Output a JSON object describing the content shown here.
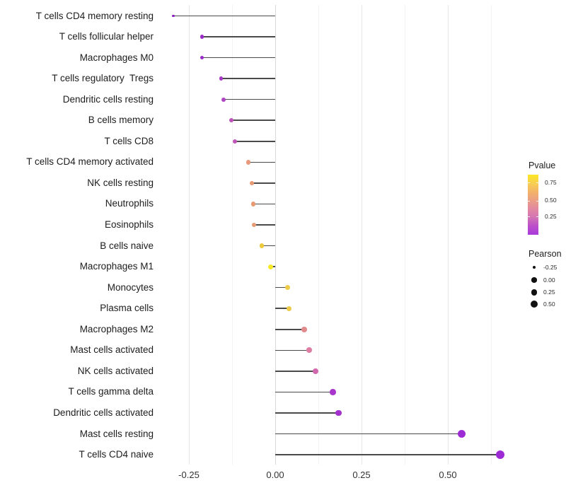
{
  "chart_data": {
    "type": "scatter",
    "subtype": "lollipop",
    "title": "",
    "xlabel": "",
    "ylabel": "",
    "xlim": [
      -0.336,
      0.67
    ],
    "grid": true,
    "x_ticks": [
      {
        "value": -0.25,
        "label": "-0.25"
      },
      {
        "value": 0.0,
        "label": "0.00"
      },
      {
        "value": 0.25,
        "label": "0.25"
      },
      {
        "value": 0.5,
        "label": "0.50"
      }
    ],
    "x_minor_ticks": [
      -0.125,
      0.125,
      0.375,
      0.625
    ],
    "points": [
      {
        "label": "T cells CD4 memory resting",
        "pearson": -0.295,
        "size": 3.4,
        "color": "#8B1FC4"
      },
      {
        "label": "T cells follicular helper",
        "pearson": -0.212,
        "size": 5.2,
        "color": "#9A2BC9"
      },
      {
        "label": "Macrophages M0",
        "pearson": -0.212,
        "size": 5.2,
        "color": "#9A2BC9"
      },
      {
        "label": "T cells regulatory  Tregs",
        "pearson": -0.157,
        "size": 5.6,
        "color": "#A73AC7"
      },
      {
        "label": "Dendritic cells resting",
        "pearson": -0.15,
        "size": 5.8,
        "color": "#B045C4"
      },
      {
        "label": "B cells memory",
        "pearson": -0.128,
        "size": 6.0,
        "color": "#BD52BB"
      },
      {
        "label": "T cells CD8",
        "pearson": -0.117,
        "size": 6.2,
        "color": "#BF55B9"
      },
      {
        "label": "T cells CD4 memory activated",
        "pearson": -0.078,
        "size": 6.4,
        "color": "#E8997B"
      },
      {
        "label": "NK cells resting",
        "pearson": -0.068,
        "size": 6.5,
        "color": "#E89A76"
      },
      {
        "label": "Neutrophils",
        "pearson": -0.064,
        "size": 6.5,
        "color": "#E79972"
      },
      {
        "label": "Eosinophils",
        "pearson": -0.061,
        "size": 6.5,
        "color": "#E69B74"
      },
      {
        "label": "B cells naive",
        "pearson": -0.039,
        "size": 6.8,
        "color": "#EEC93C"
      },
      {
        "label": "Macrophages M1",
        "pearson": -0.014,
        "size": 7.0,
        "color": "#F7E926"
      },
      {
        "label": "Monocytes",
        "pearson": 0.036,
        "size": 7.3,
        "color": "#EECC45"
      },
      {
        "label": "Plasma cells",
        "pearson": 0.04,
        "size": 7.3,
        "color": "#EECA4A"
      },
      {
        "label": "Macrophages M2",
        "pearson": 0.084,
        "size": 7.7,
        "color": "#E18A8D"
      },
      {
        "label": "Mast cells activated",
        "pearson": 0.098,
        "size": 7.8,
        "color": "#DE7CA3"
      },
      {
        "label": "NK cells activated",
        "pearson": 0.116,
        "size": 8.0,
        "color": "#D168AE"
      },
      {
        "label": "T cells gamma delta",
        "pearson": 0.167,
        "size": 8.5,
        "color": "#A936CC"
      },
      {
        "label": "Dendritic cells activated",
        "pearson": 0.184,
        "size": 8.7,
        "color": "#A430CE"
      },
      {
        "label": "Mast cells resting",
        "pearson": 0.54,
        "size": 11.4,
        "color": "#9D2BD3"
      },
      {
        "label": "T cells CD4 naive",
        "pearson": 0.651,
        "size": 12.2,
        "color": "#9D2BD3"
      }
    ],
    "legend_pvalue": {
      "title": "Pvalue",
      "tick_labels": [
        "0.75",
        "0.50",
        "0.25"
      ],
      "tick_offsets": [
        11,
        36.5,
        59
      ],
      "gradient": [
        "#FBE723 0%",
        "#F9D14E 13%",
        "#F2B06B 30%",
        "#EB9E85 43%",
        "#E288A1 57%",
        "#D476B3 70%",
        "#BC4FC9 85%",
        "#A93BDB 100%"
      ]
    },
    "legend_pearson": {
      "title": "Pearson",
      "dot_color": "#111111",
      "entries": [
        {
          "label": "-0.25",
          "diameter": 4.0
        },
        {
          "label": "0.00",
          "diameter": 7.3
        },
        {
          "label": "0.25",
          "diameter": 8.7
        },
        {
          "label": "0.50",
          "diameter": 10.0
        }
      ]
    },
    "styles": {
      "stick_color": "#4a4a4a",
      "grid_major": "#e7e7e7",
      "grid_minor": "#f3f3f3",
      "zero_line": "#d9d9d9",
      "label_color": "#1d1d1d",
      "axis_text_color": "#323232"
    }
  }
}
